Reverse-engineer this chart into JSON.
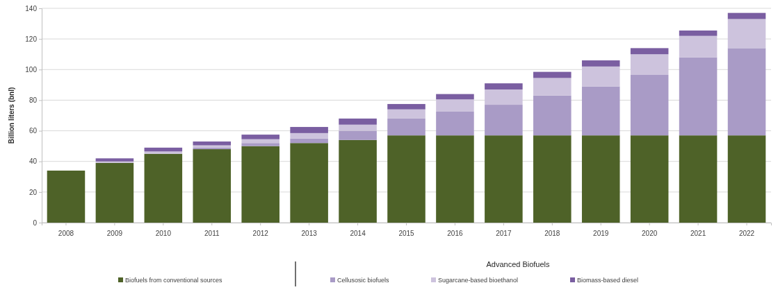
{
  "chart_data": {
    "type": "bar",
    "stacked": true,
    "ylabel": "Billion liters (bnl)",
    "legend_title": "Advanced Biofuels",
    "legend": "bottom",
    "grid": "y",
    "categories": [
      "2008",
      "2009",
      "2010",
      "2011",
      "2012",
      "2013",
      "2014",
      "2015",
      "2016",
      "2017",
      "2018",
      "2019",
      "2020",
      "2021",
      "2022"
    ],
    "ylim": [
      0,
      140
    ],
    "yticks": [
      0,
      20,
      40,
      60,
      80,
      100,
      120,
      140
    ],
    "series": [
      {
        "name": "Biofuels from conventional sources",
        "color": "#4e6228",
        "values": [
          34,
          39,
          45,
          48,
          50,
          52,
          54,
          57,
          57,
          57,
          57,
          57,
          57,
          57,
          57
        ]
      },
      {
        "name": "Cellusosic biofuels",
        "color": "#a99bc6",
        "values": [
          0,
          0,
          0,
          1,
          2,
          3,
          6,
          11,
          15.5,
          20,
          26,
          32,
          39.5,
          51,
          57
        ]
      },
      {
        "name": "Sugarcane-based bioethanol",
        "color": "#cdc3dd",
        "values": [
          0,
          1,
          1.5,
          1.5,
          2.5,
          3.5,
          4,
          6,
          8,
          10,
          11.5,
          13,
          13.5,
          14,
          19
        ]
      },
      {
        "name": "Biomass-based diesel",
        "color": "#7a5ea1",
        "values": [
          0,
          2,
          2.5,
          2.5,
          3,
          4,
          4,
          3.5,
          3.5,
          4,
          4,
          4,
          4,
          3.5,
          4
        ]
      }
    ]
  }
}
